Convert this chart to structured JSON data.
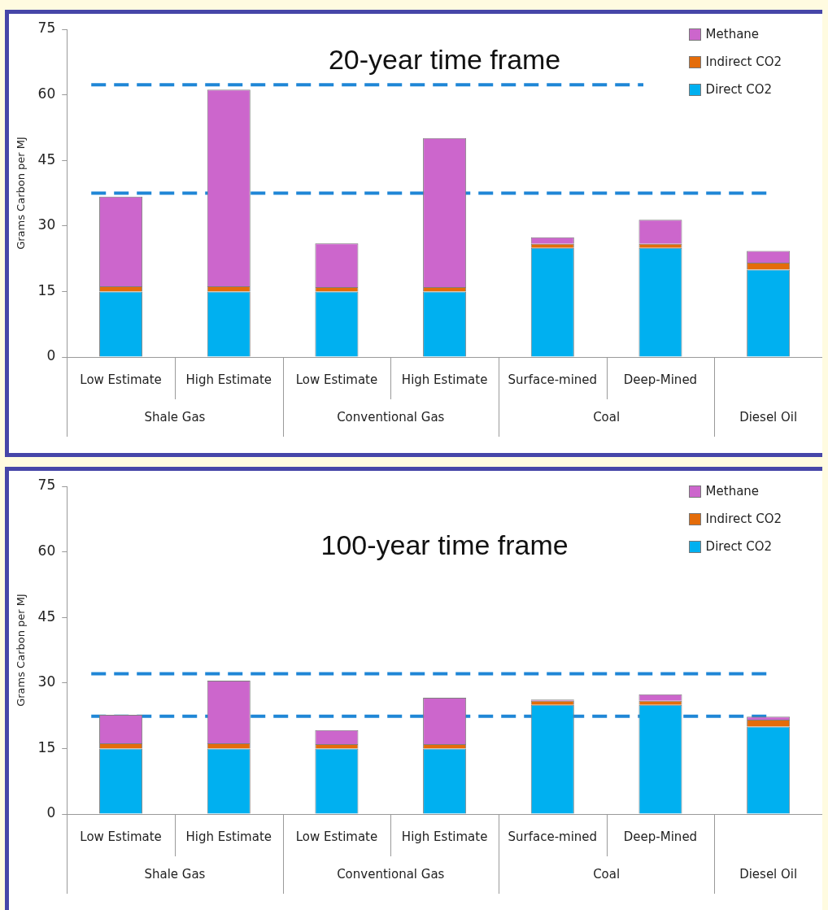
{
  "chart_data": [
    {
      "type": "bar",
      "title": "20-year time frame",
      "ylabel": "Grams Carbon per MJ",
      "stacked": true,
      "categories": [
        "Low Estimate",
        "High Estimate",
        "Low Estimate",
        "High Estimate",
        "Surface-mined",
        "Deep-Mined",
        null
      ],
      "series": [
        {
          "name": "Direct CO2",
          "color": "#00b0f0",
          "values": [
            15,
            15,
            15,
            15,
            25,
            25,
            20
          ]
        },
        {
          "name": "Indirect CO2",
          "color": "#e46c0a",
          "values": [
            1.2,
            1.2,
            1,
            1,
            0.9,
            0.9,
            1.6
          ]
        },
        {
          "name": "Methane",
          "color": "#cc66cc",
          "values": [
            20.5,
            45,
            10,
            34.1,
            1.5,
            5.5,
            2.7
          ]
        }
      ],
      "ylim": [
        0,
        75
      ],
      "yticks": [
        0,
        15,
        30,
        45,
        60,
        75
      ],
      "grid": false,
      "legend": "top right",
      "ref_lines": [
        {
          "axis": "y",
          "value": 62.3,
          "color": "#1f86d6",
          "line_style": "dashed"
        },
        {
          "axis": "y",
          "value": 37.5,
          "color": "#1f86d6",
          "line_style": "dashed"
        }
      ],
      "annotations": [
        "Shale Gas",
        "Conventional Gas",
        "Coal",
        "Diesel Oil"
      ]
    },
    {
      "type": "bar",
      "title": "100-year time frame",
      "ylabel": "Grams Carbon per MJ",
      "stacked": true,
      "categories": [
        "Low Estimate",
        "High Estimate",
        "Low Estimate",
        "High Estimate",
        "Surface-mined",
        "Deep-Mined",
        null
      ],
      "series": [
        {
          "name": "Direct CO2",
          "color": "#00b0f0",
          "values": [
            15,
            15,
            15,
            15,
            25,
            25,
            20
          ]
        },
        {
          "name": "Indirect CO2",
          "color": "#e46c0a",
          "values": [
            1.2,
            1.2,
            1,
            1,
            0.9,
            0.9,
            1.6
          ]
        },
        {
          "name": "Methane",
          "color": "#cc66cc",
          "values": [
            6.5,
            14.3,
            3.2,
            10.6,
            0.3,
            1.5,
            0.7
          ]
        }
      ],
      "ylim": [
        0,
        75
      ],
      "yticks": [
        0,
        15,
        30,
        45,
        60,
        75
      ],
      "grid": false,
      "legend": "top right",
      "ref_lines": [
        {
          "axis": "y",
          "value": 32.1,
          "color": "#1f86d6",
          "line_style": "dashed"
        },
        {
          "axis": "y",
          "value": 22.4,
          "color": "#1f86d6",
          "line_style": "dashed"
        }
      ],
      "annotations": [
        "Shale Gas",
        "Conventional Gas",
        "Coal",
        "Diesel Oil"
      ]
    }
  ]
}
